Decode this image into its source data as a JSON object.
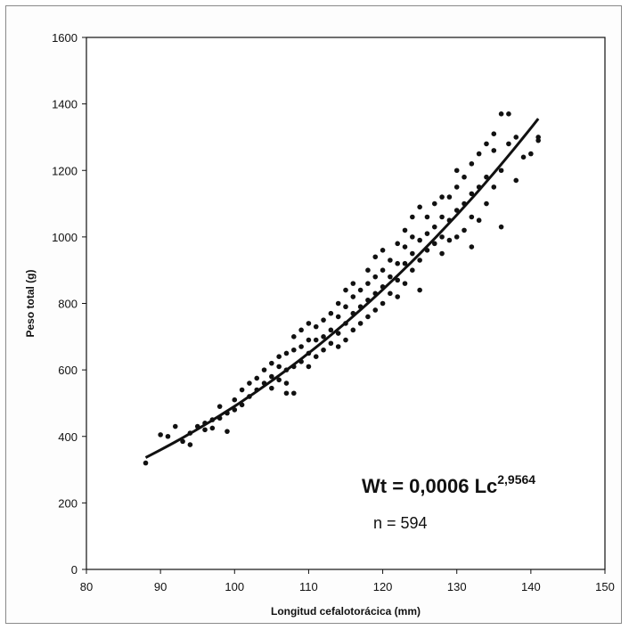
{
  "chart_data": {
    "type": "scatter",
    "title": "",
    "xlabel": "Longitud cefalotorácica (mm)",
    "ylabel": "Peso total (g)",
    "xlim": [
      80,
      150
    ],
    "ylim": [
      0,
      1600
    ],
    "xticks": [
      80,
      90,
      100,
      110,
      120,
      130,
      140,
      150
    ],
    "yticks": [
      0,
      200,
      400,
      600,
      800,
      1000,
      1200,
      1400,
      1600
    ],
    "xtick_labels": [
      "80",
      "90",
      "100",
      "110",
      "120",
      "130",
      "140",
      "150"
    ],
    "ytick_labels": [
      "0",
      "200",
      "400",
      "600",
      "800",
      "1000",
      "1200",
      "1400",
      "1600"
    ],
    "grid": false,
    "fit": {
      "type": "power",
      "a": 0.0006,
      "b": 2.9564,
      "x_range": [
        88,
        141
      ]
    },
    "annotations": {
      "equation_main": "Wt = 0,0006 Lc",
      "equation_exponent": "2,9564",
      "n": "n = 594"
    },
    "points": [
      [
        88,
        320
      ],
      [
        90,
        405
      ],
      [
        91,
        400
      ],
      [
        92,
        430
      ],
      [
        93,
        385
      ],
      [
        94,
        375
      ],
      [
        94,
        410
      ],
      [
        95,
        430
      ],
      [
        96,
        420
      ],
      [
        96,
        440
      ],
      [
        97,
        425
      ],
      [
        97,
        450
      ],
      [
        98,
        455
      ],
      [
        98,
        490
      ],
      [
        99,
        415
      ],
      [
        99,
        470
      ],
      [
        100,
        480
      ],
      [
        100,
        510
      ],
      [
        101,
        495
      ],
      [
        101,
        540
      ],
      [
        102,
        520
      ],
      [
        102,
        560
      ],
      [
        103,
        540
      ],
      [
        103,
        575
      ],
      [
        104,
        560
      ],
      [
        104,
        600
      ],
      [
        105,
        545
      ],
      [
        105,
        580
      ],
      [
        105,
        620
      ],
      [
        106,
        570
      ],
      [
        106,
        610
      ],
      [
        106,
        640
      ],
      [
        107,
        560
      ],
      [
        107,
        600
      ],
      [
        107,
        650
      ],
      [
        107,
        530
      ],
      [
        108,
        610
      ],
      [
        108,
        660
      ],
      [
        108,
        700
      ],
      [
        108,
        530
      ],
      [
        109,
        625
      ],
      [
        109,
        670
      ],
      [
        109,
        720
      ],
      [
        110,
        610
      ],
      [
        110,
        650
      ],
      [
        110,
        690
      ],
      [
        110,
        740
      ],
      [
        111,
        640
      ],
      [
        111,
        690
      ],
      [
        111,
        730
      ],
      [
        112,
        660
      ],
      [
        112,
        700
      ],
      [
        112,
        750
      ],
      [
        113,
        680
      ],
      [
        113,
        720
      ],
      [
        113,
        770
      ],
      [
        114,
        670
      ],
      [
        114,
        710
      ],
      [
        114,
        760
      ],
      [
        114,
        800
      ],
      [
        115,
        690
      ],
      [
        115,
        740
      ],
      [
        115,
        790
      ],
      [
        115,
        840
      ],
      [
        116,
        720
      ],
      [
        116,
        770
      ],
      [
        116,
        820
      ],
      [
        116,
        860
      ],
      [
        117,
        740
      ],
      [
        117,
        790
      ],
      [
        117,
        840
      ],
      [
        118,
        760
      ],
      [
        118,
        810
      ],
      [
        118,
        860
      ],
      [
        118,
        900
      ],
      [
        119,
        780
      ],
      [
        119,
        830
      ],
      [
        119,
        880
      ],
      [
        119,
        940
      ],
      [
        120,
        800
      ],
      [
        120,
        850
      ],
      [
        120,
        900
      ],
      [
        120,
        960
      ],
      [
        121,
        830
      ],
      [
        121,
        880
      ],
      [
        121,
        930
      ],
      [
        122,
        820
      ],
      [
        122,
        870
      ],
      [
        122,
        920
      ],
      [
        122,
        980
      ],
      [
        123,
        860
      ],
      [
        123,
        920
      ],
      [
        123,
        970
      ],
      [
        123,
        1020
      ],
      [
        124,
        900
      ],
      [
        124,
        950
      ],
      [
        124,
        1000
      ],
      [
        124,
        1060
      ],
      [
        125,
        840
      ],
      [
        125,
        930
      ],
      [
        125,
        990
      ],
      [
        125,
        1090
      ],
      [
        126,
        960
      ],
      [
        126,
        1010
      ],
      [
        126,
        1060
      ],
      [
        127,
        980
      ],
      [
        127,
        1030
      ],
      [
        127,
        1100
      ],
      [
        128,
        950
      ],
      [
        128,
        1000
      ],
      [
        128,
        1060
      ],
      [
        128,
        1120
      ],
      [
        129,
        990
      ],
      [
        129,
        1050
      ],
      [
        129,
        1120
      ],
      [
        130,
        1000
      ],
      [
        130,
        1080
      ],
      [
        130,
        1150
      ],
      [
        130,
        1200
      ],
      [
        131,
        1020
      ],
      [
        131,
        1100
      ],
      [
        131,
        1180
      ],
      [
        132,
        970
      ],
      [
        132,
        1060
      ],
      [
        132,
        1130
      ],
      [
        132,
        1220
      ],
      [
        133,
        1050
      ],
      [
        133,
        1150
      ],
      [
        133,
        1250
      ],
      [
        134,
        1100
      ],
      [
        134,
        1180
      ],
      [
        134,
        1280
      ],
      [
        135,
        1150
      ],
      [
        135,
        1260
      ],
      [
        135,
        1310
      ],
      [
        136,
        1030
      ],
      [
        136,
        1200
      ],
      [
        136,
        1370
      ],
      [
        137,
        1280
      ],
      [
        137,
        1370
      ],
      [
        138,
        1170
      ],
      [
        138,
        1300
      ],
      [
        139,
        1240
      ],
      [
        140,
        1250
      ],
      [
        141,
        1300
      ],
      [
        141,
        1290
      ]
    ]
  }
}
